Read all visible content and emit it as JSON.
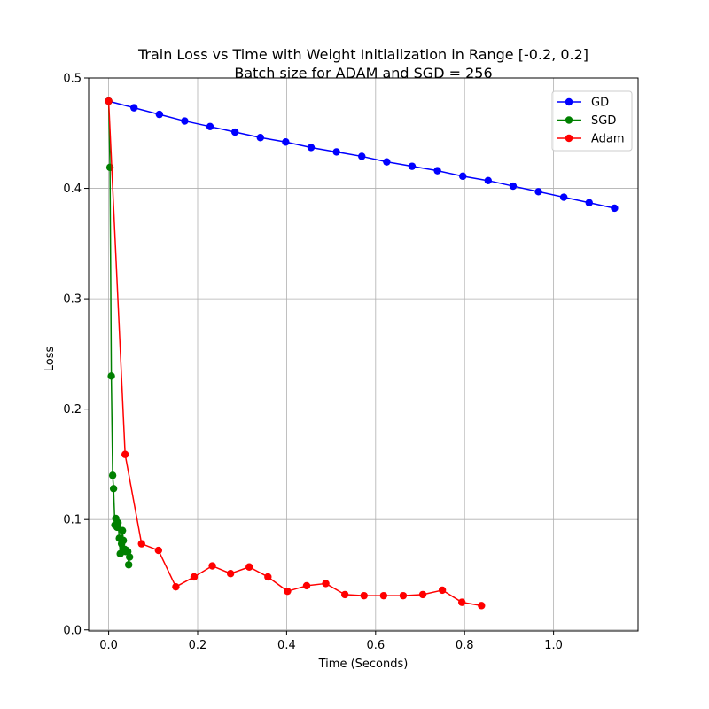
{
  "chart_data": {
    "type": "line",
    "title": "Train Loss vs Time with Weight Initialization in Range [-0.2, 0.2]",
    "subtitle": "Batch size for ADAM and SGD = 256",
    "xlabel": "Time (Seconds)",
    "ylabel": "Loss",
    "xlim": [
      -0.045,
      1.19
    ],
    "ylim": [
      -0.001,
      0.5
    ],
    "xticks": [
      0.0,
      0.2,
      0.4,
      0.6,
      0.8,
      1.0
    ],
    "xtick_labels": [
      "0.0",
      "0.2",
      "0.4",
      "0.6",
      "0.8",
      "1.0"
    ],
    "yticks": [
      0.0,
      0.1,
      0.2,
      0.3,
      0.4,
      0.5
    ],
    "ytick_labels": [
      "0.0",
      "0.1",
      "0.2",
      "0.3",
      "0.4",
      "0.5"
    ],
    "grid": true,
    "legend_position": "top-right",
    "series": [
      {
        "name": "GD",
        "color": "#0000ff",
        "marker": "circle",
        "x": [
          0.0,
          0.057,
          0.114,
          0.171,
          0.228,
          0.284,
          0.341,
          0.398,
          0.455,
          0.512,
          0.569,
          0.625,
          0.682,
          0.739,
          0.796,
          0.853,
          0.909,
          0.966,
          1.023,
          1.08,
          1.137
        ],
        "y": [
          0.479,
          0.473,
          0.467,
          0.461,
          0.456,
          0.451,
          0.446,
          0.442,
          0.437,
          0.433,
          0.429,
          0.424,
          0.42,
          0.416,
          0.411,
          0.407,
          0.402,
          0.397,
          0.392,
          0.387,
          0.382
        ]
      },
      {
        "name": "SGD",
        "color": "#008000",
        "marker": "circle",
        "x": [
          0.0,
          0.003,
          0.006,
          0.009,
          0.011,
          0.014,
          0.016,
          0.019,
          0.021,
          0.024,
          0.026,
          0.029,
          0.031,
          0.033,
          0.036,
          0.038,
          0.04,
          0.043,
          0.045,
          0.047
        ],
        "y": [
          0.479,
          0.419,
          0.23,
          0.14,
          0.128,
          0.095,
          0.101,
          0.093,
          0.097,
          0.083,
          0.069,
          0.078,
          0.09,
          0.081,
          0.073,
          0.071,
          0.072,
          0.071,
          0.059,
          0.066
        ]
      },
      {
        "name": "Adam",
        "color": "#ff0000",
        "marker": "circle",
        "x": [
          0.0,
          0.037,
          0.074,
          0.112,
          0.151,
          0.192,
          0.233,
          0.274,
          0.316,
          0.358,
          0.402,
          0.445,
          0.488,
          0.531,
          0.574,
          0.618,
          0.662,
          0.706,
          0.75,
          0.794,
          0.838
        ],
        "y": [
          0.479,
          0.159,
          0.078,
          0.072,
          0.039,
          0.048,
          0.058,
          0.051,
          0.057,
          0.048,
          0.035,
          0.04,
          0.042,
          0.032,
          0.031,
          0.031,
          0.031,
          0.032,
          0.036,
          0.025,
          0.022
        ]
      }
    ]
  }
}
